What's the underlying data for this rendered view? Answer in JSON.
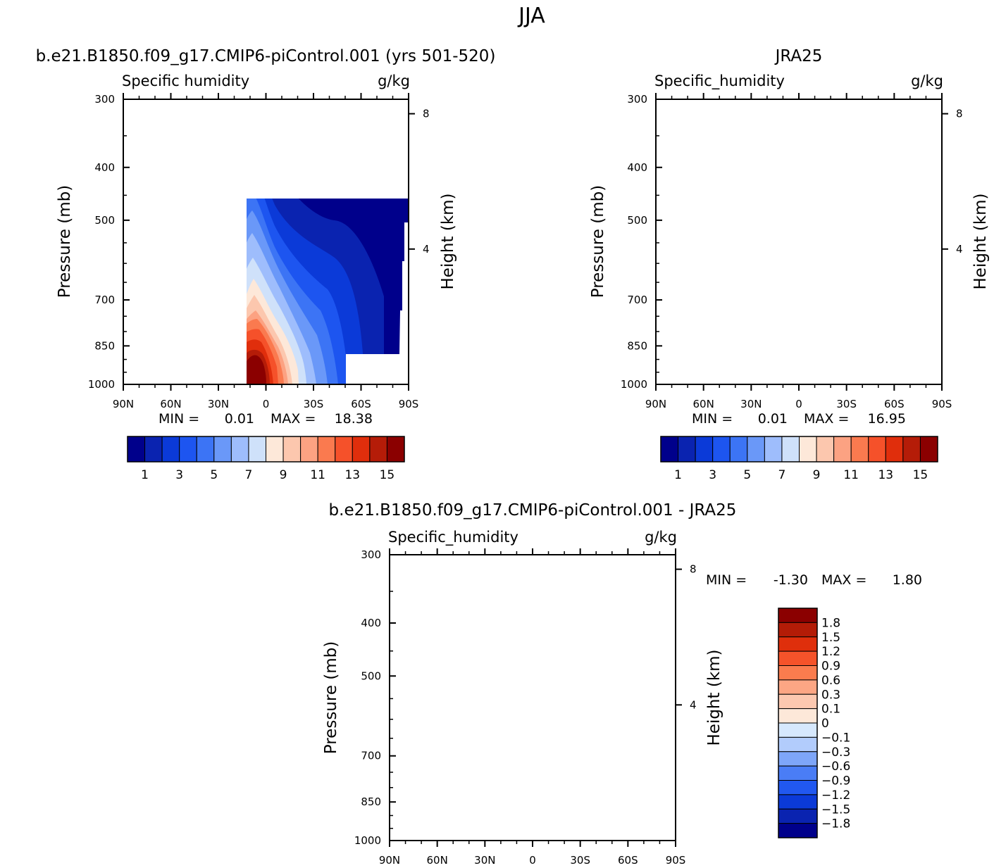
{
  "figure": {
    "title": "JJA"
  },
  "colors": {
    "abs": [
      "#00008b",
      "#0a23b0",
      "#0b3ad8",
      "#1d55f0",
      "#3c74f5",
      "#6a98f8",
      "#9ebdfc",
      "#cfe1fa",
      "#fde8d9",
      "#fcc7ae",
      "#fca282",
      "#fa7a4f",
      "#f5512a",
      "#e02e0c",
      "#b51c08",
      "#8b0000"
    ],
    "diff": [
      "#00008b",
      "#0a23b0",
      "#0b3ad8",
      "#2158f0",
      "#4a7df6",
      "#7ea6f9",
      "#b2ccfc",
      "#d6e8fd",
      "#fde8d9",
      "#fcc8b0",
      "#fca684",
      "#fa7c4e",
      "#f5532a",
      "#df2f0c",
      "#b31c07",
      "#8b0000"
    ]
  },
  "chart_data": [
    {
      "type": "heatmap",
      "title": "b.e21.B1850.f09_g17.CMIP6-piControl.001 (yrs 501-520)",
      "left_string": "Specific humidity",
      "right_string": "g/kg",
      "ylabel": "Pressure (mb)",
      "y2label": "Height (km)",
      "x_tick_labels": [
        "90N",
        "60N",
        "30N",
        "0",
        "30S",
        "60S",
        "90S"
      ],
      "y_tick_labels": [
        "300",
        "400",
        "500",
        "700",
        "850",
        "1000"
      ],
      "y2_tick_labels": [
        "8",
        "4"
      ],
      "min_label": "MIN =",
      "min_value": "0.01",
      "max_label": "MAX =",
      "max_value": "18.38",
      "levels": [
        1,
        2,
        3,
        4,
        5,
        6,
        7,
        8,
        9,
        10,
        11,
        12,
        13,
        14,
        15
      ],
      "colorbar_labels": [
        "1",
        "3",
        "5",
        "7",
        "9",
        "11",
        "13",
        "15"
      ],
      "xlim": [
        90,
        -90
      ],
      "ylim": [
        1000,
        300
      ]
    },
    {
      "type": "heatmap",
      "title": "JRA25",
      "left_string": "Specific_humidity",
      "right_string": "g/kg",
      "ylabel": "Pressure (mb)",
      "y2label": "Height (km)",
      "x_tick_labels": [
        "90N",
        "60N",
        "30N",
        "0",
        "30S",
        "60S",
        "90S"
      ],
      "y_tick_labels": [
        "300",
        "400",
        "500",
        "700",
        "850",
        "1000"
      ],
      "y2_tick_labels": [
        "8",
        "4"
      ],
      "min_label": "MIN =",
      "min_value": "0.01",
      "max_label": "MAX =",
      "max_value": "16.95",
      "levels": [
        1,
        2,
        3,
        4,
        5,
        6,
        7,
        8,
        9,
        10,
        11,
        12,
        13,
        14,
        15
      ],
      "colorbar_labels": [
        "1",
        "3",
        "5",
        "7",
        "9",
        "11",
        "13",
        "15"
      ],
      "xlim": [
        90,
        -90
      ],
      "ylim": [
        1000,
        300
      ]
    },
    {
      "type": "heatmap",
      "title": "b.e21.B1850.f09_g17.CMIP6-piControl.001 - JRA25",
      "left_string": "Specific_humidity",
      "right_string": "g/kg",
      "ylabel": "Pressure (mb)",
      "y2label": "Height (km)",
      "x_tick_labels": [
        "90N",
        "60N",
        "30N",
        "0",
        "30S",
        "60S",
        "90S"
      ],
      "y_tick_labels": [
        "300",
        "400",
        "500",
        "700",
        "850",
        "1000"
      ],
      "y2_tick_labels": [
        "8",
        "4"
      ],
      "min_label": "MIN =",
      "min_value": "-1.30",
      "max_label": "MAX =",
      "max_value": "1.80",
      "levels": [
        -1.8,
        -1.5,
        -1.2,
        -0.9,
        -0.6,
        -0.3,
        -0.1,
        0,
        0.1,
        0.3,
        0.6,
        0.9,
        1.2,
        1.5,
        1.8
      ],
      "colorbar_labels": [
        "1.8",
        "1.5",
        "1.2",
        "0.9",
        "0.6",
        "0.3",
        "0.1",
        "0",
        "−0.1",
        "−0.3",
        "−0.6",
        "−0.9",
        "−1.2",
        "−1.5",
        "−1.8"
      ],
      "xlim": [
        90,
        -90
      ],
      "ylim": [
        1000,
        300
      ]
    }
  ]
}
